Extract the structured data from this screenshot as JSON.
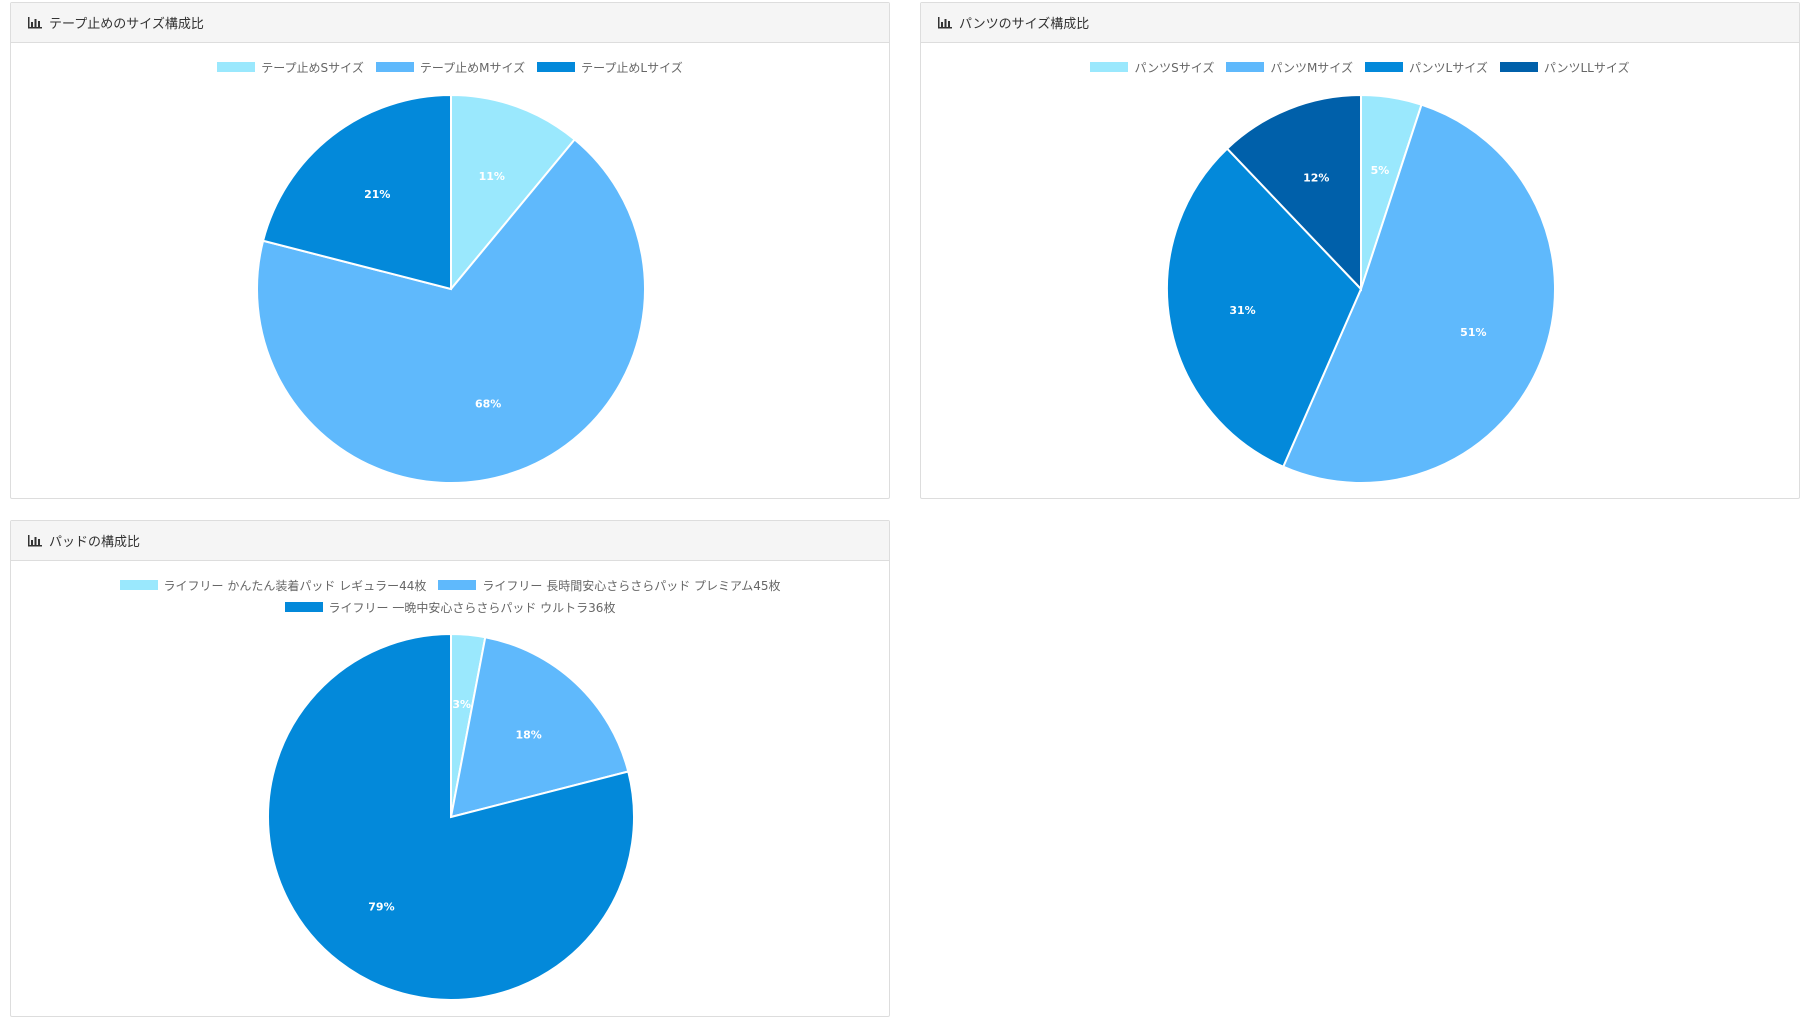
{
  "charts": [
    {
      "title": "テープ止めのサイズ構成比",
      "chart_data": {
        "type": "pie",
        "title": "テープ止めのサイズ構成比",
        "categories": [
          "テープ止めSサイズ",
          "テープ止めMサイズ",
          "テープ止めLサイズ"
        ],
        "values": [
          11,
          68,
          21
        ],
        "labels": [
          "11%",
          "68%",
          "21%"
        ],
        "colors": [
          "#9ae8fd",
          "#5fb9fc",
          "#0389da"
        ],
        "legend_position": "top"
      }
    },
    {
      "title": "パンツのサイズ構成比",
      "chart_data": {
        "type": "pie",
        "title": "パンツのサイズ構成比",
        "categories": [
          "パンツSサイズ",
          "パンツMサイズ",
          "パンツLサイズ",
          "パンツLLサイズ"
        ],
        "values": [
          5,
          51,
          31,
          12
        ],
        "labels": [
          "5%",
          "51%",
          "31%",
          "12%"
        ],
        "colors": [
          "#9ae8fd",
          "#5fb9fc",
          "#0389da",
          "#0060aa"
        ],
        "legend_position": "top"
      }
    },
    {
      "title": "パッドの構成比",
      "chart_data": {
        "type": "pie",
        "title": "パッドの構成比",
        "categories": [
          "ライフリー かんたん装着パッド レギュラー44枚",
          "ライフリー 長時間安心さらさらパッド プレミアム45枚",
          "ライフリー 一晩中安心さらさらパッド ウルトラ36枚"
        ],
        "values": [
          3,
          18,
          79
        ],
        "labels": [
          "3%",
          "18%",
          "79%"
        ],
        "colors": [
          "#9ae8fd",
          "#5fb9fc",
          "#0389da"
        ],
        "legend_position": "top"
      }
    }
  ]
}
